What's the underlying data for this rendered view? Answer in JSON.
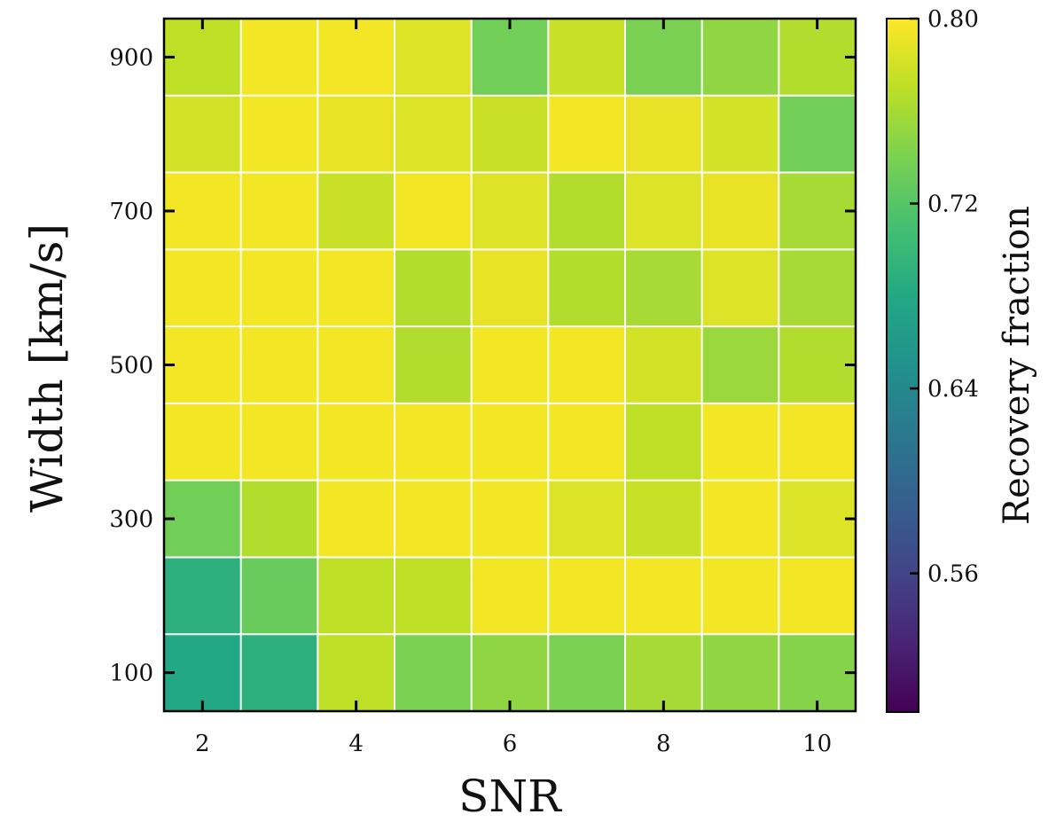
{
  "chart_data": {
    "type": "heatmap",
    "xlabel": "SNR",
    "ylabel": "Width [km/s]",
    "x": [
      2,
      3,
      4,
      5,
      6,
      7,
      8,
      9,
      10
    ],
    "y": [
      100,
      200,
      300,
      400,
      500,
      600,
      700,
      800,
      900
    ],
    "xticks": [
      "2",
      "4",
      "6",
      "8",
      "10"
    ],
    "yticks": [
      "100",
      "300",
      "500",
      "700",
      "900"
    ],
    "values": [
      [
        0.68,
        0.69,
        0.77,
        0.74,
        0.75,
        0.74,
        0.76,
        0.75,
        0.745
      ],
      [
        0.69,
        0.73,
        0.77,
        0.77,
        0.795,
        0.795,
        0.795,
        0.795,
        0.795
      ],
      [
        0.735,
        0.765,
        0.795,
        0.795,
        0.795,
        0.785,
        0.775,
        0.795,
        0.785
      ],
      [
        0.795,
        0.795,
        0.795,
        0.795,
        0.795,
        0.795,
        0.77,
        0.795,
        0.795
      ],
      [
        0.795,
        0.795,
        0.795,
        0.765,
        0.795,
        0.795,
        0.78,
        0.755,
        0.765
      ],
      [
        0.795,
        0.795,
        0.795,
        0.765,
        0.79,
        0.765,
        0.76,
        0.785,
        0.76
      ],
      [
        0.795,
        0.795,
        0.775,
        0.795,
        0.785,
        0.765,
        0.785,
        0.79,
        0.76
      ],
      [
        0.78,
        0.795,
        0.79,
        0.785,
        0.775,
        0.795,
        0.79,
        0.78,
        0.735
      ],
      [
        0.77,
        0.795,
        0.795,
        0.785,
        0.735,
        0.775,
        0.74,
        0.75,
        0.765
      ]
    ],
    "colorbar": {
      "label": "Recovery fraction",
      "range": [
        0.5,
        0.8
      ],
      "ticks": [
        "0.56",
        "0.64",
        "0.72",
        "0.80"
      ],
      "colormap": "viridis"
    },
    "grid": true,
    "grid_color": "#ffffff"
  }
}
